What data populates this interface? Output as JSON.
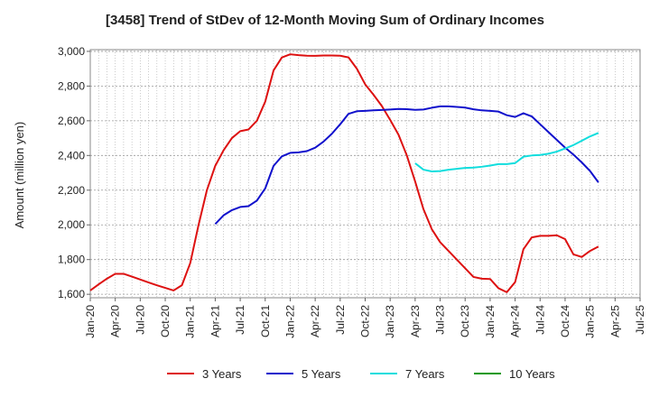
{
  "chart_data": {
    "type": "line",
    "title": "[3458]  Trend of StDev of 12-Month Moving Sum of Ordinary Incomes",
    "xlabel": "",
    "ylabel": "Amount (million yen)",
    "ylim": [
      1580,
      3010
    ],
    "yticks": [
      1600,
      1800,
      2000,
      2200,
      2400,
      2600,
      2800,
      3000
    ],
    "ytick_labels": [
      "1,600",
      "1,800",
      "2,000",
      "2,200",
      "2,400",
      "2,600",
      "2,800",
      "3,000"
    ],
    "xticks": [
      "Jan-20",
      "Apr-20",
      "Jul-20",
      "Oct-20",
      "Jan-21",
      "Apr-21",
      "Jul-21",
      "Oct-21",
      "Jan-22",
      "Apr-22",
      "Jul-22",
      "Oct-22",
      "Jan-23",
      "Apr-23",
      "Jul-23",
      "Oct-23",
      "Jan-24",
      "Apr-24",
      "Jul-24",
      "Oct-24",
      "Jan-25",
      "Apr-25",
      "Jul-25"
    ],
    "x_start": "Jan-20",
    "grid": true,
    "legend_position": "bottom",
    "series": [
      {
        "name": "3 Years",
        "color": "#dd1111",
        "values": [
          1622,
          1657,
          1690,
          1718,
          1718,
          1702,
          1685,
          1668,
          1652,
          1637,
          1622,
          1652,
          1780,
          2000,
          2200,
          2340,
          2430,
          2500,
          2540,
          2550,
          2600,
          2710,
          2890,
          2965,
          2983,
          2978,
          2975,
          2974,
          2976,
          2976,
          2975,
          2965,
          2900,
          2810,
          2750,
          2685,
          2605,
          2520,
          2400,
          2250,
          2090,
          1975,
          1900,
          1850,
          1800,
          1750,
          1700,
          1690,
          1688,
          1635,
          1612,
          1670,
          1860,
          1928,
          1937,
          1937,
          1940,
          1918,
          1830,
          1815,
          1850,
          1875
        ]
      },
      {
        "name": "5 Years",
        "color": "#1111cc",
        "values": [
          null,
          null,
          null,
          null,
          null,
          null,
          null,
          null,
          null,
          null,
          null,
          null,
          null,
          null,
          null,
          2005,
          2055,
          2085,
          2103,
          2108,
          2140,
          2210,
          2340,
          2395,
          2415,
          2418,
          2425,
          2445,
          2480,
          2525,
          2580,
          2640,
          2655,
          2657,
          2660,
          2662,
          2665,
          2668,
          2667,
          2663,
          2665,
          2675,
          2683,
          2683,
          2680,
          2676,
          2666,
          2660,
          2657,
          2653,
          2632,
          2622,
          2643,
          2625,
          2580,
          2535,
          2490,
          2445,
          2405,
          2360,
          2310,
          2245
        ]
      },
      {
        "name": "7 Years",
        "color": "#11dddd",
        "values": [
          null,
          null,
          null,
          null,
          null,
          null,
          null,
          null,
          null,
          null,
          null,
          null,
          null,
          null,
          null,
          null,
          null,
          null,
          null,
          null,
          null,
          null,
          null,
          null,
          null,
          null,
          null,
          null,
          null,
          null,
          null,
          null,
          null,
          null,
          null,
          null,
          null,
          null,
          null,
          2355,
          2318,
          2308,
          2310,
          2318,
          2323,
          2328,
          2330,
          2335,
          2342,
          2350,
          2350,
          2356,
          2393,
          2400,
          2403,
          2410,
          2422,
          2440,
          2460,
          2485,
          2510,
          2530
        ]
      },
      {
        "name": "10 Years",
        "color": "#119911",
        "values": []
      }
    ]
  }
}
